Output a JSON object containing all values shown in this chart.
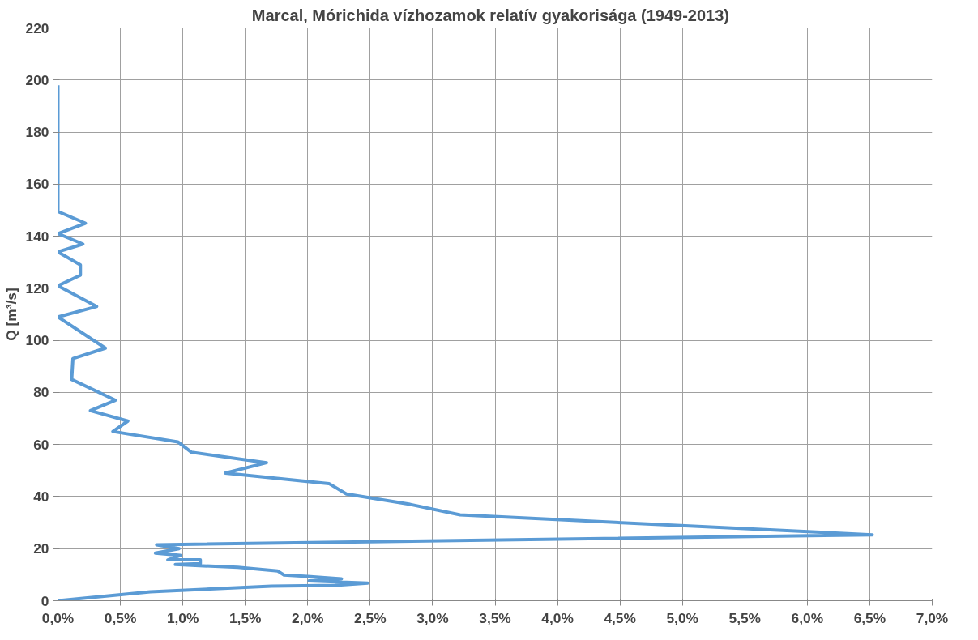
{
  "chart_data": {
    "type": "line",
    "title": "Marcal, Mórichida vízhozamok  relatív gyakorisága  (1949-2013)",
    "ylabel": "Q [m³/s]",
    "series": [
      {
        "color": "#5b9bd5",
        "x": [
          0,
          0,
          0.22,
          0,
          0.2,
          0,
          0.18,
          0.18,
          0,
          0.31,
          0,
          0.38,
          0.12,
          0.11,
          0.46,
          0.26,
          0.56,
          0.44,
          0.96,
          1.07,
          1.67,
          1.34,
          2.17,
          2.31,
          2.82,
          3.22,
          6.52,
          0.79,
          0.97,
          0.78,
          0.98,
          0.88,
          1.14,
          1.14,
          0.94,
          1.44,
          1.76,
          1.81,
          2.0,
          2.27,
          2.01,
          2.48,
          2.22,
          1.71,
          0.74,
          0
        ],
        "values": [
          198,
          149.5,
          145,
          141,
          137,
          134,
          129,
          125,
          121,
          113,
          109,
          97,
          93,
          85,
          77,
          73,
          69,
          65,
          61,
          57,
          53,
          49,
          45,
          41,
          37,
          33,
          25.3,
          21.5,
          20,
          18.3,
          17.4,
          15.7,
          15.7,
          14.2,
          13.9,
          12.8,
          11.4,
          9.9,
          9.3,
          8.4,
          7.6,
          6.8,
          5.9,
          5.6,
          3.4,
          0
        ]
      }
    ],
    "xlim": [
      0,
      7
    ],
    "xticks": [
      {
        "value": 0,
        "label": "0,0%"
      },
      {
        "value": 0.5,
        "label": "0,5%"
      },
      {
        "value": 1,
        "label": "1,0%"
      },
      {
        "value": 1.5,
        "label": "1,5%"
      },
      {
        "value": 2,
        "label": "2,0%"
      },
      {
        "value": 2.5,
        "label": "2,5%"
      },
      {
        "value": 3,
        "label": "3,0%"
      },
      {
        "value": 3.5,
        "label": "3,5%"
      },
      {
        "value": 4,
        "label": "4,0%"
      },
      {
        "value": 4.5,
        "label": "4,5%"
      },
      {
        "value": 5,
        "label": "5,0%"
      },
      {
        "value": 5.5,
        "label": "5,5%"
      },
      {
        "value": 6,
        "label": "6,0%"
      },
      {
        "value": 6.5,
        "label": "6,5%"
      },
      {
        "value": 7,
        "label": "7,0%"
      }
    ],
    "ylim": [
      0,
      220
    ],
    "yticks": [
      0,
      20,
      40,
      60,
      80,
      100,
      120,
      140,
      160,
      180,
      200,
      220
    ],
    "grid": true,
    "marker": "none",
    "line_style": "solid"
  }
}
